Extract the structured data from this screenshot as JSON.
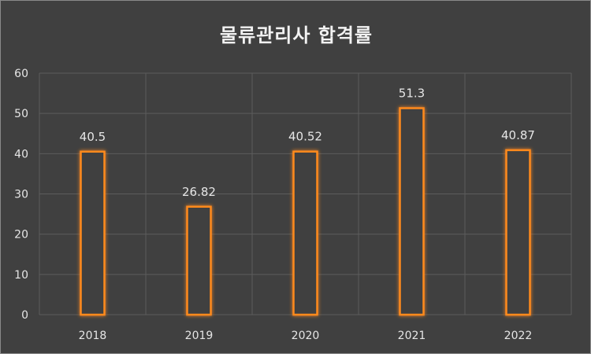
{
  "chart_data": {
    "type": "bar",
    "title": "물류관리사 합격률",
    "categories": [
      "2018",
      "2019",
      "2020",
      "2021",
      "2022"
    ],
    "values": [
      40.5,
      26.82,
      40.52,
      51.3,
      40.87
    ],
    "data_labels": [
      "40.5",
      "26.82",
      "40.52",
      "51.3",
      "40.87"
    ],
    "ylim": [
      0,
      60
    ],
    "yticks": [
      0,
      10,
      20,
      30,
      40,
      50,
      60
    ],
    "ytick_labels": [
      "0",
      "10",
      "20",
      "30",
      "40",
      "50",
      "60"
    ],
    "xlabel": "",
    "ylabel": "",
    "grid": true,
    "legend": "none",
    "colors": {
      "background": "#404040",
      "bar_outline": "#ff8a1f",
      "bar_fill": "#404040",
      "grid": "#5c5c5c",
      "text": "#e6e6e6"
    }
  }
}
